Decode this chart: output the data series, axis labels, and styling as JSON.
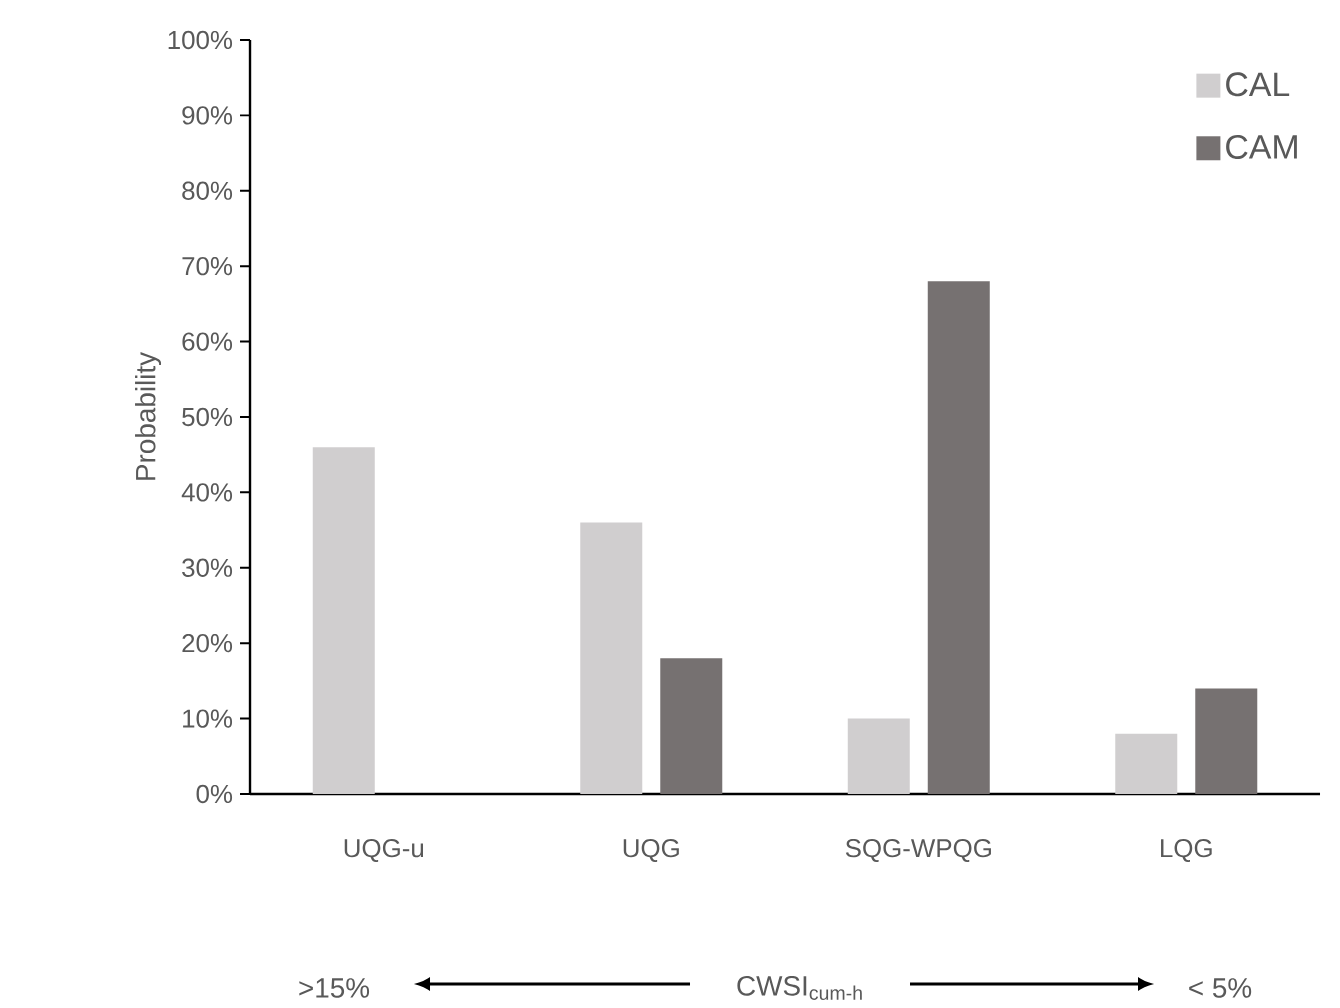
{
  "chart_data": {
    "type": "bar",
    "categories": [
      "UQG-u",
      "UQG",
      "SQG-WPQG",
      "LQG"
    ],
    "series": [
      {
        "name": "CAL",
        "color": "#d0cecf",
        "values": [
          46,
          36,
          10,
          8
        ]
      },
      {
        "name": "CAM",
        "color": "#767171",
        "values": [
          null,
          18,
          68,
          14
        ]
      }
    ],
    "ylabel": "Probability",
    "annotations": [
      ">15%",
      "CWSI$_{cum-h}$",
      "< 5%"
    ],
    "ylim": [
      0,
      100
    ],
    "yticks": [
      {
        "value": 0,
        "label": "0%"
      },
      {
        "value": 10,
        "label": "10%"
      },
      {
        "value": 20,
        "label": "20%"
      },
      {
        "value": 30,
        "label": "30%"
      },
      {
        "value": 40,
        "label": "40%"
      },
      {
        "value": 50,
        "label": "50%"
      },
      {
        "value": 60,
        "label": "60%"
      },
      {
        "value": 70,
        "label": "70%"
      },
      {
        "value": 80,
        "label": "80%"
      },
      {
        "value": 90,
        "label": "90%"
      },
      {
        "value": 100,
        "label": "100%"
      }
    ],
    "legend": "top right"
  }
}
